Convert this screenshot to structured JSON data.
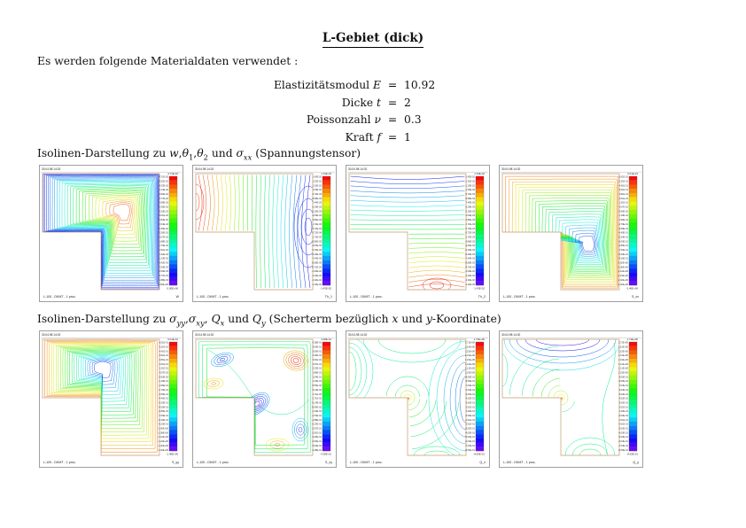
{
  "page": {
    "title": "L-Gebiet (dick)",
    "intro": "Es werden folgende Materialdaten verwendet :"
  },
  "materials": [
    {
      "label": "Elastizitätsmodul",
      "symbol": "E",
      "eq": "=",
      "value": "10.92"
    },
    {
      "label": "Dicke",
      "symbol": "t",
      "eq": "=",
      "value": "2"
    },
    {
      "label": "Poissonzahl",
      "symbol": "ν",
      "eq": "=",
      "value": "0.3"
    },
    {
      "label": "Kraft",
      "symbol": "f",
      "eq": "=",
      "value": "1"
    }
  ],
  "sections": [
    {
      "heading_parts": [
        {
          "t": "Isolinen-Darstellung zu "
        },
        {
          "t": "w",
          "i": 1
        },
        {
          "t": ","
        },
        {
          "t": "θ",
          "i": 1
        },
        {
          "t": "1",
          "sub": 1
        },
        {
          "t": ","
        },
        {
          "t": "θ",
          "i": 1
        },
        {
          "t": "2",
          "sub": 1
        },
        {
          "t": " und "
        },
        {
          "t": "σ",
          "i": 1
        },
        {
          "t": "xx",
          "sub": 1,
          "i": 1
        },
        {
          "t": " (Spannungstensor)"
        }
      ]
    },
    {
      "heading_parts": [
        {
          "t": "Isolinen-Darstellung zu "
        },
        {
          "t": "σ",
          "i": 1
        },
        {
          "t": "yy",
          "sub": 1,
          "i": 1
        },
        {
          "t": ","
        },
        {
          "t": "σ",
          "i": 1
        },
        {
          "t": "xy",
          "sub": 1,
          "i": 1
        },
        {
          "t": ", "
        },
        {
          "t": "Q",
          "i": 1
        },
        {
          "t": "x",
          "sub": 1,
          "i": 1
        },
        {
          "t": " und "
        },
        {
          "t": "Q",
          "i": 1
        },
        {
          "t": "y",
          "sub": 1,
          "i": 1
        },
        {
          "t": " (Scherterm bezüglich "
        },
        {
          "t": "x",
          "i": 1
        },
        {
          "t": " und "
        },
        {
          "t": "y",
          "i": 1
        },
        {
          "t": "-Koordinate)"
        }
      ]
    }
  ],
  "plots": [
    {
      "name": "w",
      "header": "30.04.98 14:02",
      "footer": "L-100 - DKMT - 1 proc.",
      "label": "W",
      "pattern": "w",
      "colorbar": {
        "max": "4.71E-02",
        "min": "0.00E+00"
      }
    },
    {
      "name": "th1",
      "header": "30.04.98 14:02",
      "footer": "L-100 - DKMT - 1 proc.",
      "label": "Th_1",
      "pattern": "th1",
      "colorbar": {
        "max": "1.43E-02",
        "min": "-1.43E-02"
      }
    },
    {
      "name": "th2",
      "header": "30.04.98 14:02",
      "footer": "L-100 - DKMT - 1 proc.",
      "label": "Th_2",
      "pattern": "th2",
      "colorbar": {
        "max": "1.43E-02",
        "min": "-1.43E-02"
      }
    },
    {
      "name": "sxx",
      "header": "30.04.98 14:02",
      "footer": "L-100 - DKMT - 1 proc.",
      "label": "S_xx",
      "pattern": "sxx",
      "colorbar": {
        "max": "6.01E-01",
        "min": "-1.40E+00"
      }
    },
    {
      "name": "syy",
      "header": "30.04.98 14:02",
      "footer": "L-100 - DKMT - 1 proc.",
      "label": "S_yy",
      "pattern": "syy",
      "colorbar": {
        "max": "6.01E-01",
        "min": "-1.40E+00"
      }
    },
    {
      "name": "sxy",
      "header": "30.04.98 14:02",
      "footer": "L-100 - DKMT - 1 proc.",
      "label": "S_xy",
      "pattern": "sxy",
      "colorbar": {
        "max": "4.28E-01",
        "min": "-4.28E-01"
      }
    },
    {
      "name": "qx",
      "header": "30.04.98 14:02",
      "footer": "L-100 - DKMT - 1 proc.",
      "label": "Q_x",
      "pattern": "qx",
      "colorbar": {
        "max": "1.71E+00",
        "min": "-8.05E-01"
      }
    },
    {
      "name": "qy",
      "header": "30.04.98 14:02",
      "footer": "L-100 - DKMT - 1 proc.",
      "label": "Q_y",
      "pattern": "qy",
      "colorbar": {
        "max": "1.71E+00",
        "min": "-8.05E-01"
      }
    }
  ]
}
